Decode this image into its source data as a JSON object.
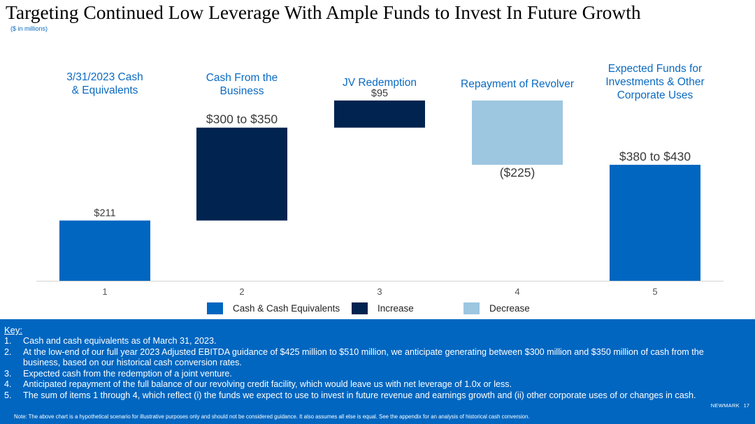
{
  "page": {
    "title": "Targeting Continued Low Leverage With Ample Funds to Invest In Future Growth",
    "subtitle": "($ in millions)"
  },
  "colors": {
    "cash": "#0066c0",
    "increase": "#00234f",
    "decrease": "#9dc6e0",
    "header_text": "#0a6ac1",
    "footer_bg": "#0066c0"
  },
  "chart_data": {
    "type": "bar",
    "subtype": "waterfall",
    "categories": [
      "1",
      "2",
      "3",
      "4",
      "5"
    ],
    "category_headers": [
      "3/31/2023 Cash\n& Equivalents",
      "Cash From the\nBusiness",
      "JV Redemption",
      "Repayment of Revolver",
      "Expected Funds for\nInvestments & Other\nCorporate Uses"
    ],
    "bars": [
      {
        "kind": "cash",
        "start": 0,
        "end": 211,
        "label": "$211"
      },
      {
        "kind": "increase",
        "start": 211,
        "end": 536,
        "label": "$300 to $350"
      },
      {
        "kind": "increase",
        "start": 536,
        "end": 631,
        "label": "$95"
      },
      {
        "kind": "decrease",
        "start": 631,
        "end": 406,
        "label": "($225)"
      },
      {
        "kind": "cash",
        "start": 0,
        "end": 406,
        "label": "$380 to $430"
      }
    ],
    "ylim": [
      0,
      660
    ],
    "legend": [
      {
        "kind": "cash",
        "label": "Cash & Cash Equivalents"
      },
      {
        "kind": "increase",
        "label": "Increase"
      },
      {
        "kind": "decrease",
        "label": "Decrease"
      }
    ],
    "legend_position": "bottom"
  },
  "footer": {
    "key_title": "Key:",
    "notes": [
      {
        "num": "1.",
        "text": "Cash and cash equivalents as of March 31, 2023."
      },
      {
        "num": "2.",
        "text": "At the low-end of our full year 2023 Adjusted EBITDA guidance of $425 million to $510 million, we anticipate generating between $300 million and $350 million of cash from the business, based on our historical cash conversion rates."
      },
      {
        "num": "3.",
        "text": "Expected cash from the redemption of a joint venture."
      },
      {
        "num": "4.",
        "text": "Anticipated repayment of the full balance of our revolving credit facility, which would leave us with net leverage of 1.0x or less."
      },
      {
        "num": "5.",
        "text": "The sum of items 1 through 4, which reflect (i) the funds we expect to use to invest in future revenue and earnings growth and (ii) other corporate uses of or changes in cash."
      }
    ],
    "brand": "NEWMARK",
    "page_number": "17",
    "disclaimer": "Note: The above chart is a hypothetical scenario for illustrative purposes only and should not be considered guidance. It also assumes all else is equal. See the appendix for an analysis of historical cash conversion."
  }
}
